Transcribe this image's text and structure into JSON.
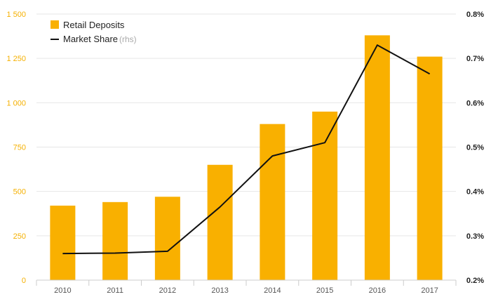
{
  "chart_data": {
    "type": "bar",
    "categories": [
      "2010",
      "2011",
      "2012",
      "2013",
      "2014",
      "2015",
      "2016",
      "2017"
    ],
    "series": [
      {
        "name": "Retail Deposits",
        "type": "bar",
        "axis": "left",
        "color": "#f9b000",
        "values": [
          420,
          440,
          470,
          650,
          880,
          950,
          1380,
          1260
        ]
      },
      {
        "name": "Market Share",
        "type": "line",
        "axis": "right",
        "color": "#111111",
        "values": [
          0.26,
          0.261,
          0.265,
          0.365,
          0.48,
          0.51,
          0.73,
          0.665
        ]
      }
    ],
    "y_left": {
      "ylim": [
        0,
        1500
      ],
      "ticks": [
        0,
        250,
        500,
        750,
        1000,
        1250,
        1500
      ],
      "tick_labels": [
        "0",
        "250",
        "500",
        "750",
        "1 000",
        "1 250",
        "1 500"
      ],
      "color": "#f5b000"
    },
    "y_right": {
      "ylim": [
        0.2,
        0.8
      ],
      "ticks": [
        0.2,
        0.3,
        0.4,
        0.5,
        0.6,
        0.7,
        0.8
      ],
      "tick_labels": [
        "0.2%",
        "0.3%",
        "0.4%",
        "0.5%",
        "0.6%",
        "0.7%",
        "0.8%"
      ]
    },
    "legend": {
      "placement": "top-left",
      "entries": [
        {
          "label": "Retail Deposits",
          "suffix": "",
          "marker": "square"
        },
        {
          "label": "Market Share",
          "suffix": "(rhs)",
          "marker": "line"
        }
      ]
    },
    "grid": true
  }
}
